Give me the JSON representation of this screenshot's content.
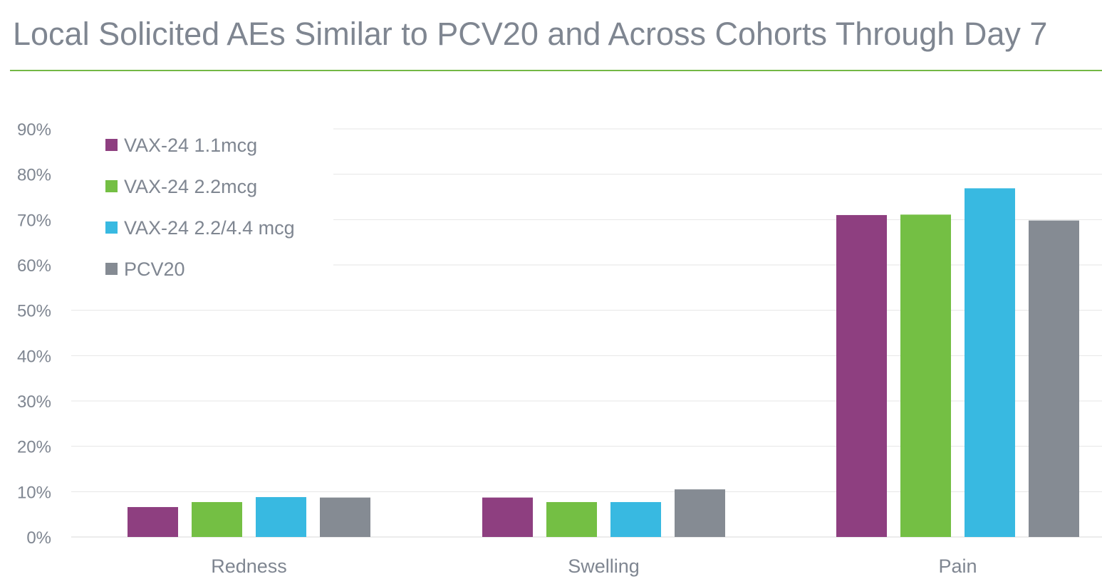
{
  "title": "Local Solicited AEs Similar to PCV20 and Across Cohorts Through Day 7",
  "chart_data": {
    "type": "bar",
    "title": "Local Solicited AEs Similar to PCV20 and Across Cohorts Through Day 7",
    "xlabel": "",
    "ylabel": "",
    "categories": [
      "Redness",
      "Swelling",
      "Pain"
    ],
    "series": [
      {
        "name": "VAX-24 1.1mcg",
        "color": "#8e3f80",
        "values": [
          6.6,
          8.7,
          71.0
        ]
      },
      {
        "name": "VAX-24 2.2mcg",
        "color": "#74bf44",
        "values": [
          7.7,
          7.7,
          71.1
        ]
      },
      {
        "name": "VAX-24 2.2/4.4 mcg",
        "color": "#38b9e1",
        "values": [
          8.8,
          7.7,
          76.9
        ]
      },
      {
        "name": "PCV20",
        "color": "#858b93",
        "values": [
          8.7,
          10.5,
          69.8
        ]
      }
    ],
    "ylim": [
      0,
      90
    ],
    "yticks": [
      0,
      10,
      20,
      30,
      40,
      50,
      60,
      70,
      80,
      90
    ],
    "ytick_labels": [
      "0%",
      "10%",
      "20%",
      "30%",
      "40%",
      "50%",
      "60%",
      "70%",
      "80%",
      "90%"
    ],
    "grid": true,
    "legend_position": "top-left"
  }
}
